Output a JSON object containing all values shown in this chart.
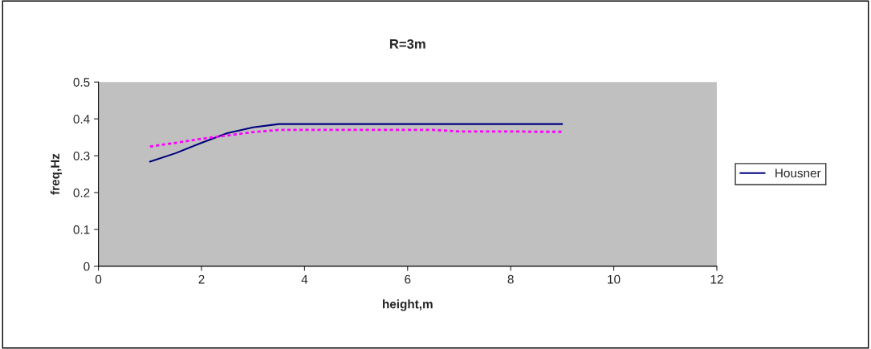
{
  "chart_data": {
    "type": "line",
    "title": "R=3m",
    "xlabel": "height,m",
    "ylabel": "freq,Hz",
    "x": [
      1,
      1.5,
      2,
      2.5,
      3,
      3.5,
      4,
      4.5,
      5,
      5.5,
      6,
      6.5,
      7,
      7.5,
      8,
      8.5,
      9
    ],
    "series": [
      {
        "name": "Housner",
        "color": "#000080",
        "line_style": "solid",
        "values": [
          0.284,
          0.307,
          0.335,
          0.361,
          0.377,
          0.386,
          0.386,
          0.386,
          0.386,
          0.386,
          0.386,
          0.386,
          0.386,
          0.386,
          0.386,
          0.386,
          0.386
        ]
      },
      {
        "color": "#ff00ff",
        "line_style": "dotted",
        "values": [
          0.325,
          0.335,
          0.346,
          0.355,
          0.364,
          0.37,
          0.37,
          0.37,
          0.37,
          0.37,
          0.37,
          0.37,
          0.366,
          0.366,
          0.366,
          0.365,
          0.365
        ]
      }
    ],
    "xlim": [
      0,
      12
    ],
    "xticks": [
      0,
      2,
      4,
      6,
      8,
      10,
      12
    ],
    "ylim": [
      0,
      0.5
    ],
    "yticks": [
      0,
      0.1,
      0.2,
      0.3,
      0.4,
      0.5
    ],
    "grid": false,
    "legend": "right",
    "marker": "none"
  }
}
